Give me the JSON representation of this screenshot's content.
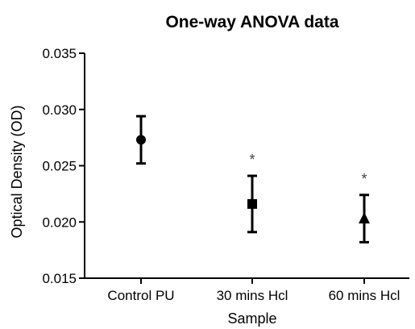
{
  "chart_data": {
    "type": "scatter",
    "title": "One-way ANOVA data",
    "xlabel": "Sample",
    "ylabel": "Optical Density (OD)",
    "ylim": [
      0.015,
      0.035
    ],
    "yticks": [
      "0.015",
      "0.020",
      "0.025",
      "0.030",
      "0.035"
    ],
    "categories": [
      "Control PU",
      "30 mins Hcl",
      "60 mins Hcl"
    ],
    "means": [
      0.0273,
      0.0216,
      0.0203
    ],
    "error_low": [
      0.0252,
      0.0191,
      0.0182
    ],
    "error_high": [
      0.0294,
      0.0241,
      0.0224
    ],
    "markers": [
      "circle",
      "square",
      "triangle"
    ],
    "significance": [
      "",
      "*",
      "*"
    ],
    "grid": false
  }
}
